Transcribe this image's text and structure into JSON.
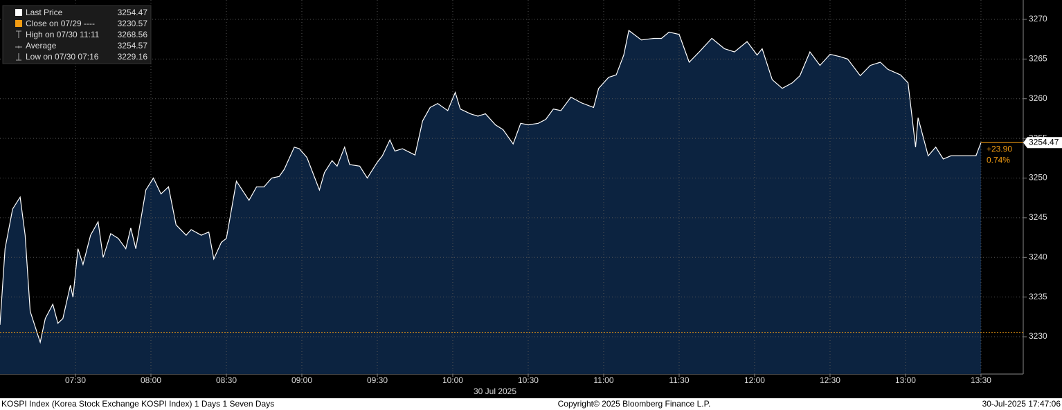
{
  "chart_data": {
    "type": "line",
    "legend": [
      {
        "label": "Last Price",
        "value": 3254.47
      },
      {
        "label": "Close on 07/29 ----",
        "value": 3230.57
      },
      {
        "label": "High on 07/30 11:11",
        "value": 3268.56
      },
      {
        "label": "Average",
        "value": 3254.57
      },
      {
        "label": "Low on 07/30 07:16",
        "value": 3229.16
      }
    ],
    "change_label": "+23.90",
    "change_pct_label": "0.74%",
    "x_label": "30 Jul 2025",
    "footer_left": "KOSPI Index (Korea Stock Exchange KOSPI Index) 1 Days 1 Seven Days",
    "footer_center": "Copyright© 2025 Bloomberg Finance L.P.",
    "footer_right": "30-Jul-2025 17:47:06",
    "line_color": "#ffffff",
    "fill_color": "#0c2340",
    "close_color": "#f39c12",
    "grid": true,
    "xlim": [
      420,
      826.8
    ],
    "ylim": [
      3225.3,
      3272.44
    ],
    "xticks": [
      {
        "value": 450,
        "label": "07:30"
      },
      {
        "value": 480,
        "label": "08:00"
      },
      {
        "value": 510,
        "label": "08:30"
      },
      {
        "value": 540,
        "label": "09:00"
      },
      {
        "value": 570,
        "label": "09:30"
      },
      {
        "value": 600,
        "label": "10:00"
      },
      {
        "value": 630,
        "label": "10:30"
      },
      {
        "value": 660,
        "label": "11:00"
      },
      {
        "value": 690,
        "label": "11:30"
      },
      {
        "value": 720,
        "label": "12:00"
      },
      {
        "value": 750,
        "label": "12:30"
      },
      {
        "value": 780,
        "label": "13:00"
      },
      {
        "value": 810,
        "label": "13:30"
      }
    ],
    "yticks": [
      3230,
      3235,
      3240,
      3245,
      3250,
      3255,
      3260,
      3265,
      3270
    ],
    "x": [
      420,
      422,
      425,
      428,
      430,
      432,
      436,
      438,
      441,
      443,
      445,
      448,
      449,
      451,
      453,
      456,
      459,
      461,
      464,
      467,
      470,
      472,
      474,
      478,
      481,
      484,
      487,
      490,
      494,
      496,
      500,
      503,
      505,
      508,
      510,
      514,
      519,
      522,
      525,
      528,
      531,
      533,
      537,
      539,
      542,
      547,
      549,
      552,
      554,
      557,
      559,
      563,
      566,
      570,
      572,
      575,
      577,
      580,
      585,
      588,
      591,
      594,
      598,
      601,
      603,
      607,
      610,
      613,
      617,
      620,
      624,
      627,
      630,
      634,
      637,
      640,
      643,
      647,
      651,
      656,
      658,
      662,
      665,
      668,
      670,
      675,
      680,
      683,
      686,
      690,
      694,
      698,
      703,
      708,
      712,
      717,
      721,
      723,
      727,
      731,
      735,
      738,
      742,
      746,
      750,
      754,
      757,
      762,
      766,
      770,
      773,
      778,
      781,
      784,
      785,
      789,
      792,
      795,
      798,
      808,
      810
    ],
    "values": [
      3231.5,
      3241.1,
      3246.1,
      3247.6,
      3242.8,
      3233.2,
      3229.3,
      3232.3,
      3234.1,
      3231.7,
      3232.3,
      3236.5,
      3235.0,
      3241.1,
      3239.1,
      3242.8,
      3244.5,
      3240.0,
      3243.0,
      3242.4,
      3241.1,
      3243.7,
      3241.1,
      3248.5,
      3250.0,
      3248.0,
      3248.9,
      3244.1,
      3242.8,
      3243.5,
      3242.8,
      3243.2,
      3239.8,
      3241.9,
      3242.4,
      3249.6,
      3247.2,
      3248.9,
      3248.9,
      3250.0,
      3250.2,
      3251.1,
      3253.9,
      3253.7,
      3252.6,
      3248.5,
      3250.7,
      3252.2,
      3251.5,
      3253.9,
      3251.7,
      3251.5,
      3250.0,
      3252.0,
      3252.8,
      3254.8,
      3253.4,
      3253.7,
      3252.9,
      3257.2,
      3258.9,
      3259.4,
      3258.5,
      3260.8,
      3258.7,
      3258.1,
      3257.8,
      3258.1,
      3256.7,
      3256.1,
      3254.3,
      3256.9,
      3256.7,
      3256.9,
      3257.4,
      3258.7,
      3258.5,
      3260.2,
      3259.5,
      3258.9,
      3261.3,
      3262.7,
      3263.0,
      3265.5,
      3268.6,
      3267.4,
      3267.6,
      3267.6,
      3268.4,
      3268.1,
      3264.6,
      3265.9,
      3267.6,
      3266.3,
      3265.9,
      3267.2,
      3265.5,
      3266.3,
      3262.4,
      3261.3,
      3262.0,
      3262.9,
      3265.9,
      3264.2,
      3265.6,
      3265.3,
      3265.0,
      3262.9,
      3264.2,
      3264.6,
      3263.7,
      3263.0,
      3262.0,
      3253.9,
      3257.6,
      3252.8,
      3253.9,
      3252.4,
      3252.8,
      3252.8,
      3254.47
    ]
  }
}
